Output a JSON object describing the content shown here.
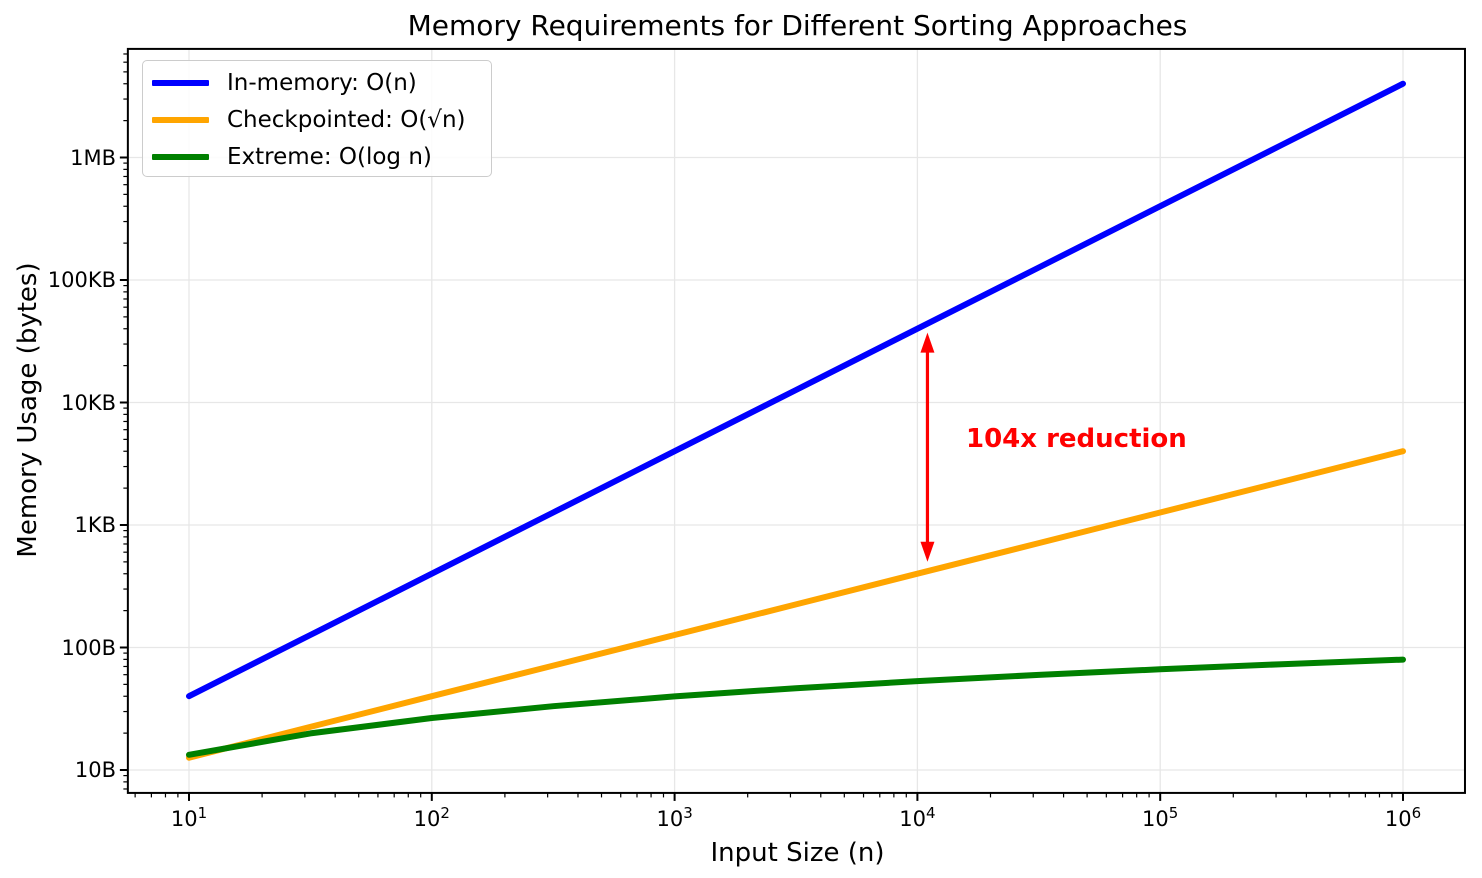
{
  "chart_data": {
    "type": "line",
    "title": "Memory Requirements for Different Sorting Approaches",
    "xlabel": "Input Size (n)",
    "ylabel": "Memory Usage (bytes)",
    "x_scale": "log",
    "y_scale": "log",
    "xlim": [
      5.6,
      1800000
    ],
    "ylim": [
      6.5,
      7700000
    ],
    "grid": "major-only",
    "grid_color": "#e7e7e7",
    "legend_position": "upper-left",
    "x_ticks": [
      {
        "base": "10",
        "exp": "1",
        "value": 10
      },
      {
        "base": "10",
        "exp": "2",
        "value": 100
      },
      {
        "base": "10",
        "exp": "3",
        "value": 1000
      },
      {
        "base": "10",
        "exp": "4",
        "value": 10000
      },
      {
        "base": "10",
        "exp": "5",
        "value": 100000
      },
      {
        "base": "10",
        "exp": "6",
        "value": 1000000
      }
    ],
    "y_ticks": [
      {
        "label": "10B",
        "value": 10
      },
      {
        "label": "100B",
        "value": 100
      },
      {
        "label": "1KB",
        "value": 1000
      },
      {
        "label": "10KB",
        "value": 10000
      },
      {
        "label": "100KB",
        "value": 100000
      },
      {
        "label": "1MB",
        "value": 1000000
      }
    ],
    "x_samples": [
      10,
      31.6,
      100,
      316.2,
      1000,
      3162.3,
      10000,
      31622.8,
      100000,
      316227.8,
      1000000
    ],
    "series": [
      {
        "name": "In-memory: O(n)",
        "color": "#0000ff",
        "values": [
          40,
          126.5,
          400,
          1264.9,
          4000,
          12649.1,
          40000,
          126491.1,
          400000,
          1264911.1,
          4000000
        ]
      },
      {
        "name": "Checkpointed: O(√n)",
        "color": "#ffa500",
        "values": [
          12.6,
          22.5,
          40,
          71.1,
          126.5,
          224.9,
          400,
          711.2,
          1264.9,
          2249.1,
          4000
        ]
      },
      {
        "name": "Extreme: O(log n)",
        "color": "#008000",
        "values": [
          13.3,
          19.9,
          26.6,
          33.2,
          39.9,
          46.5,
          53.2,
          59.8,
          66.4,
          73.1,
          79.7
        ]
      }
    ],
    "annotation": {
      "text": "104x reduction",
      "color": "#ff0000",
      "x": 11000,
      "y_from": 44000,
      "y_to": 423,
      "arrow": "double-headed-vertical"
    }
  }
}
